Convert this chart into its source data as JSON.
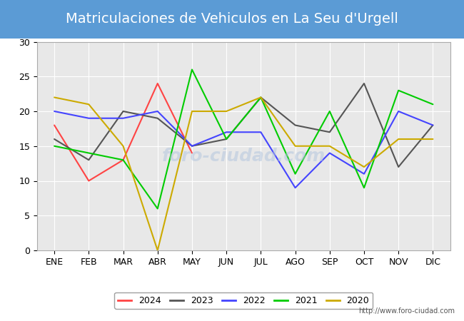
{
  "title": "Matriculaciones de Vehiculos en La Seu d'Urgell",
  "months": [
    "ENE",
    "FEB",
    "MAR",
    "ABR",
    "MAY",
    "JUN",
    "JUL",
    "AGO",
    "SEP",
    "OCT",
    "NOV",
    "DIC"
  ],
  "series": {
    "2024": [
      18,
      10,
      13,
      24,
      14,
      null,
      null,
      null,
      null,
      null,
      null,
      null
    ],
    "2023": [
      16,
      13,
      20,
      19,
      15,
      16,
      22,
      18,
      17,
      24,
      12,
      18
    ],
    "2022": [
      20,
      19,
      19,
      20,
      15,
      17,
      17,
      9,
      14,
      11,
      20,
      18
    ],
    "2021": [
      15,
      14,
      13,
      6,
      26,
      16,
      22,
      11,
      20,
      9,
      23,
      21
    ],
    "2020": [
      22,
      21,
      15,
      0,
      20,
      20,
      22,
      15,
      15,
      12,
      16,
      16
    ]
  },
  "colors": {
    "2024": "#ff4444",
    "2023": "#555555",
    "2022": "#4444ff",
    "2021": "#00cc00",
    "2020": "#ccaa00"
  },
  "ylim": [
    0,
    30
  ],
  "yticks": [
    0,
    5,
    10,
    15,
    20,
    25,
    30
  ],
  "title_fontsize": 14,
  "title_bg_color": "#5b9bd5",
  "title_text_color": "#ffffff",
  "plot_bg_color": "#e8e8e8",
  "grid_color": "#ffffff",
  "watermark": "foro-ciudad.com",
  "url": "http://www.foro-ciudad.com",
  "legend_position": "lower center"
}
